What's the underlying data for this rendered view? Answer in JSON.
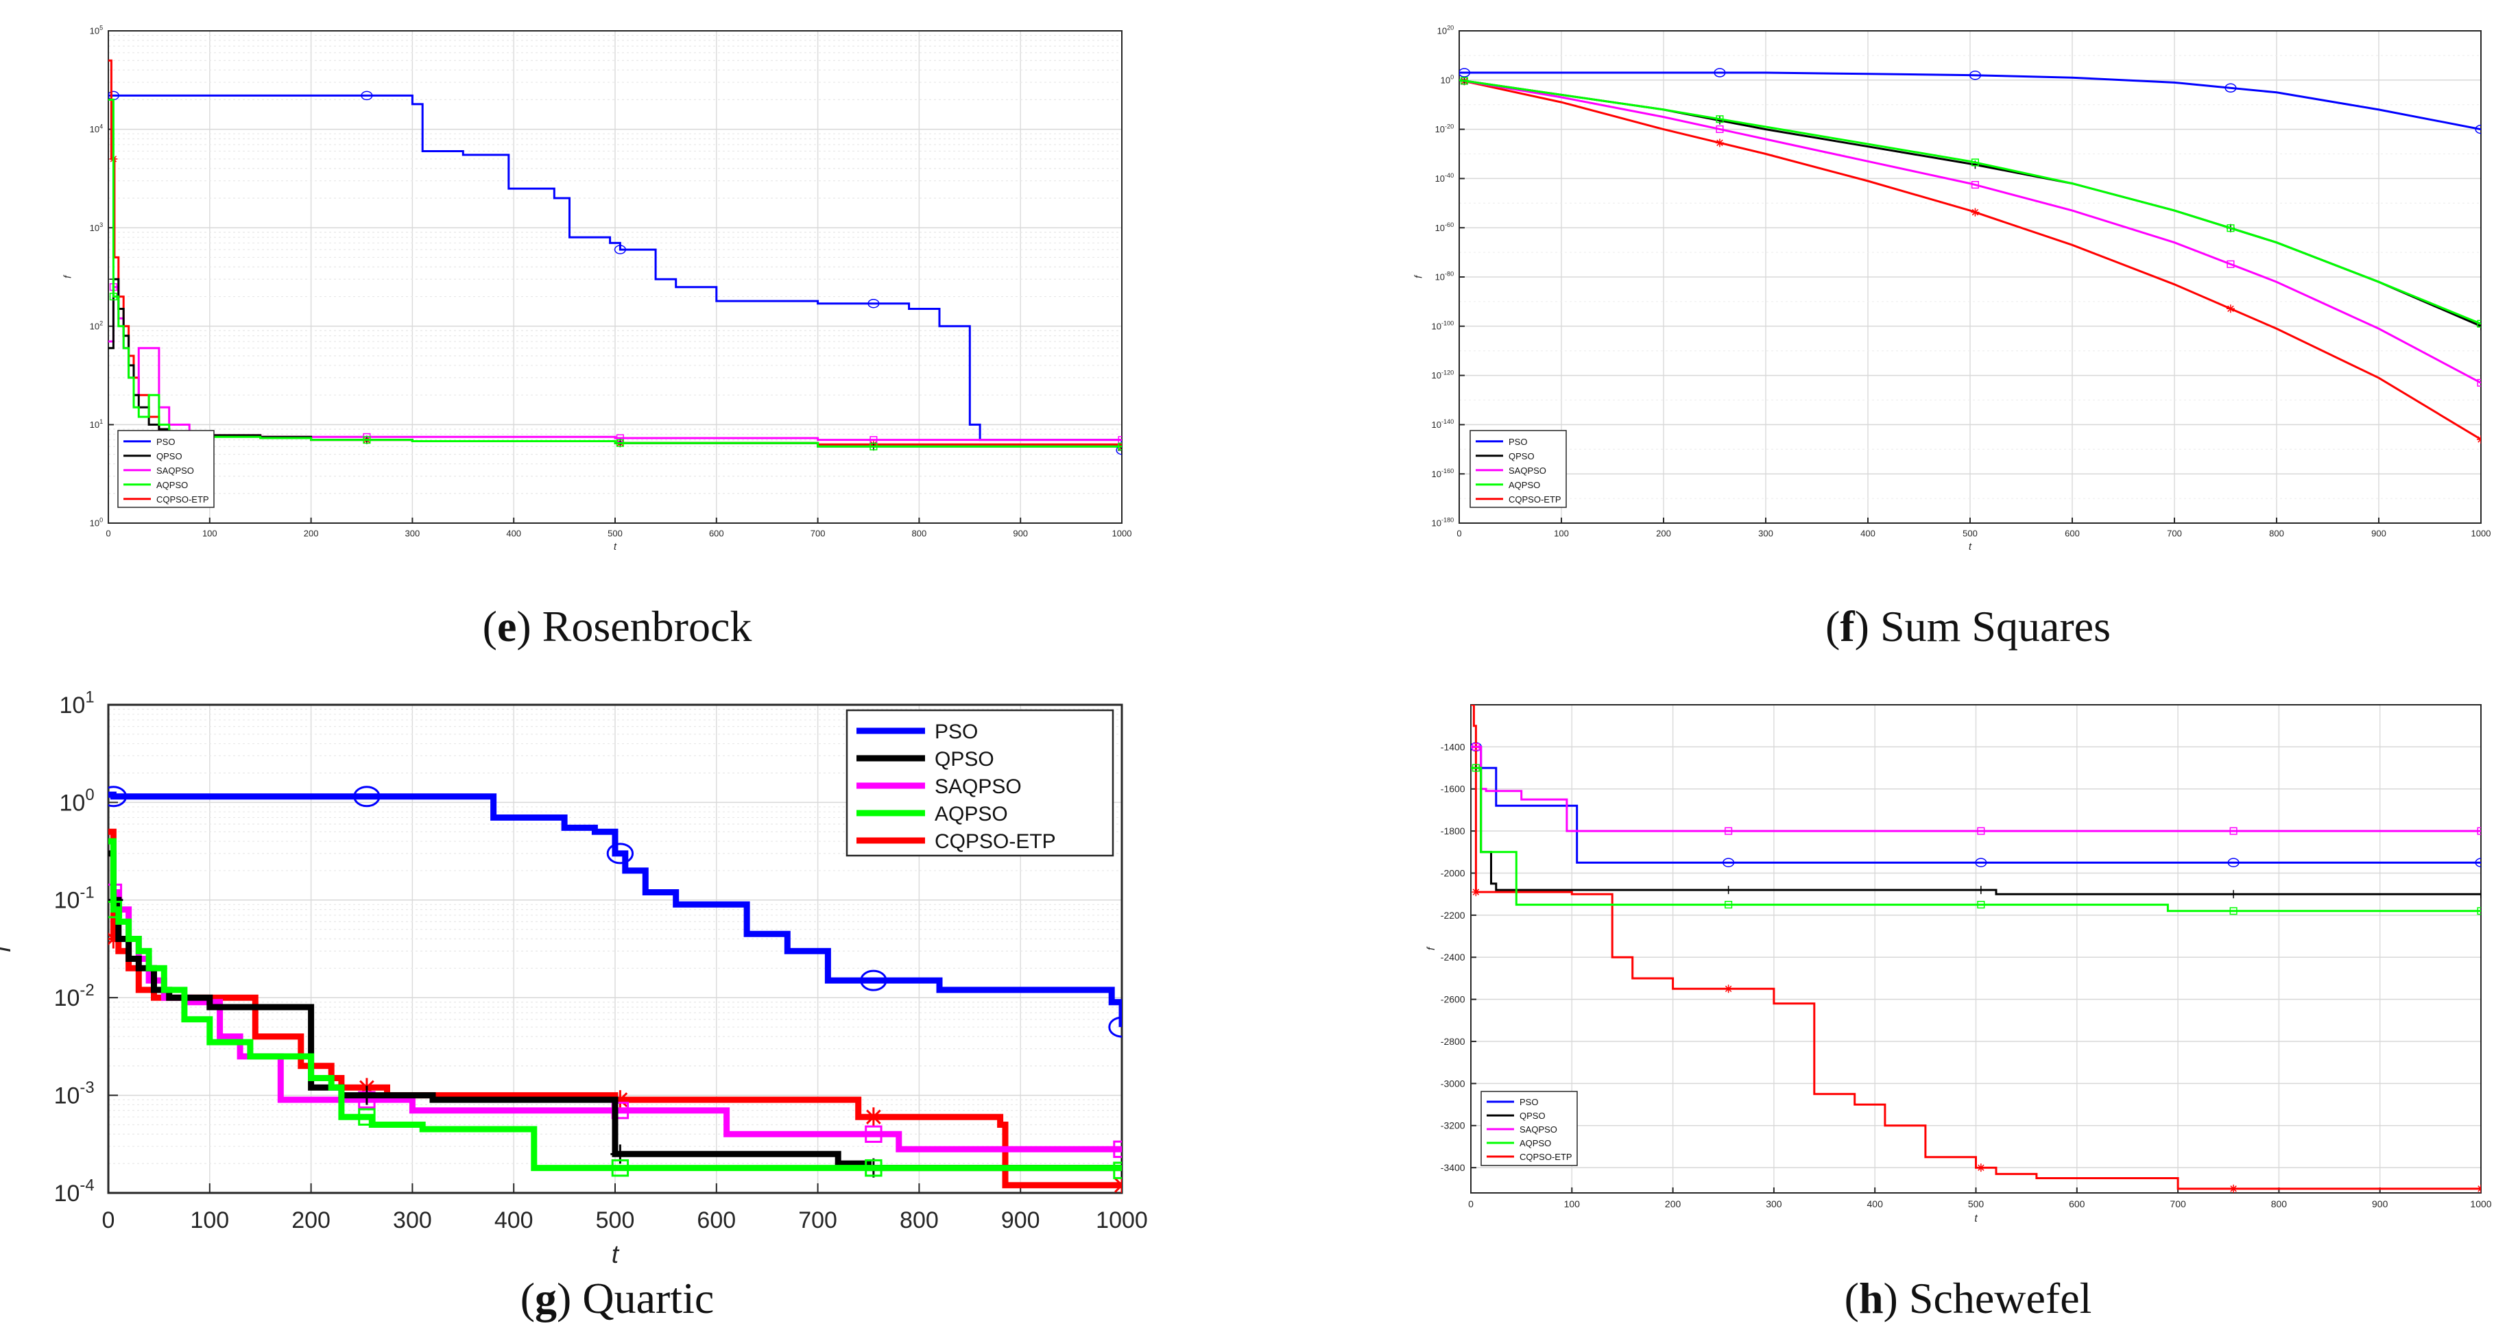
{
  "figure": {
    "panels": [
      {
        "letter": "e",
        "name": "Rosenbrock"
      },
      {
        "letter": "f",
        "name": "Sum Squares"
      },
      {
        "letter": "g",
        "name": "Quartic"
      },
      {
        "letter": "h",
        "name": "Schewefel"
      }
    ]
  },
  "colors": {
    "PSO": "#0000ff",
    "QPSO": "#000000",
    "SAQPSO": "#ff00ff",
    "AQPSO": "#00ff00",
    "CQPSO-ETP": "#ff0000"
  },
  "chart_data": [
    {
      "type": "line",
      "caption_letter": "e",
      "title": "Rosenbrock",
      "xlabel": "t",
      "ylabel": "f",
      "xlim": [
        0,
        1000
      ],
      "yscale": "log",
      "ylim": [
        1,
        100000
      ],
      "xticks": [
        "0",
        "100",
        "200",
        "300",
        "400",
        "500",
        "600",
        "700",
        "800",
        "900",
        "1000"
      ],
      "yticks": [
        {
          "base": "10",
          "exp": "0"
        },
        {
          "base": "10",
          "exp": "1"
        },
        {
          "base": "10",
          "exp": "2"
        },
        {
          "base": "10",
          "exp": "3"
        },
        {
          "base": "10",
          "exp": "4"
        },
        {
          "base": "10",
          "exp": "5"
        }
      ],
      "grid": true,
      "legend_position": "bottom-left",
      "series": [
        {
          "name": "PSO",
          "marker": "circle",
          "x": [
            0,
            5,
            300,
            310,
            350,
            395,
            440,
            455,
            495,
            505,
            540,
            560,
            600,
            700,
            790,
            820,
            850,
            860,
            1000
          ],
          "y": [
            22000,
            22000,
            18000,
            6000,
            5500,
            2500,
            2000,
            800,
            700,
            600,
            300,
            250,
            180,
            170,
            150,
            100,
            10,
            7,
            5.5
          ]
        },
        {
          "name": "QPSO",
          "marker": "plus",
          "x": [
            0,
            5,
            10,
            15,
            20,
            25,
            30,
            40,
            50,
            60,
            80,
            100,
            150,
            200,
            300,
            500,
            700,
            1000
          ],
          "y": [
            60,
            300,
            150,
            80,
            40,
            20,
            15,
            10,
            9,
            8.5,
            8,
            7.8,
            7.5,
            7,
            6.8,
            6.5,
            6,
            5.5
          ]
        },
        {
          "name": "SAQPSO",
          "marker": "square",
          "x": [
            0,
            5,
            10,
            15,
            20,
            25,
            30,
            40,
            50,
            60,
            80,
            100,
            150,
            200,
            300,
            500,
            700,
            1000
          ],
          "y": [
            70,
            250,
            120,
            60,
            30,
            20,
            60,
            60,
            15,
            10,
            8,
            7.8,
            7.5,
            7.5,
            7.5,
            7.3,
            7,
            7
          ]
        },
        {
          "name": "AQPSO",
          "marker": "square",
          "x": [
            0,
            5,
            10,
            15,
            20,
            25,
            30,
            40,
            50,
            60,
            80,
            100,
            150,
            200,
            300,
            500,
            700,
            1000
          ],
          "y": [
            20000,
            200,
            100,
            60,
            30,
            15,
            12,
            20,
            10,
            8,
            7.5,
            7.5,
            7.3,
            7,
            6.8,
            6.5,
            6,
            6
          ]
        },
        {
          "name": "CQPSO-ETP",
          "marker": "star",
          "x": [
            0,
            3,
            6,
            10,
            15,
            20,
            25,
            30,
            40,
            50,
            60,
            80,
            100,
            150,
            200,
            300,
            500,
            700,
            1000
          ],
          "y": [
            50000,
            5000,
            500,
            200,
            100,
            50,
            30,
            20,
            12,
            9,
            8.5,
            8,
            7.8,
            7.5,
            7,
            6.8,
            6.5,
            6.3,
            6
          ]
        }
      ]
    },
    {
      "type": "line",
      "caption_letter": "f",
      "title": "Sum Squares",
      "xlabel": "t",
      "ylabel": "f",
      "xlim": [
        0,
        1000
      ],
      "yscale": "log",
      "ylim_exp": [
        -180,
        20
      ],
      "xticks": [
        "0",
        "100",
        "200",
        "300",
        "400",
        "500",
        "600",
        "700",
        "800",
        "900",
        "1000"
      ],
      "yticks": [
        {
          "base": "10",
          "exp": "-180"
        },
        {
          "base": "10",
          "exp": "-160"
        },
        {
          "base": "10",
          "exp": "-140"
        },
        {
          "base": "10",
          "exp": "-120"
        },
        {
          "base": "10",
          "exp": "-100"
        },
        {
          "base": "10",
          "exp": "-80"
        },
        {
          "base": "10",
          "exp": "-60"
        },
        {
          "base": "10",
          "exp": "-40"
        },
        {
          "base": "10",
          "exp": "-20"
        },
        {
          "base": "10",
          "exp": "0"
        },
        {
          "base": "10",
          "exp": "20"
        }
      ],
      "grid": true,
      "legend_position": "bottom-left",
      "series": [
        {
          "name": "PSO",
          "marker": "circle",
          "x": [
            0,
            100,
            200,
            300,
            400,
            500,
            600,
            700,
            800,
            900,
            1000
          ],
          "y_exp": [
            3,
            3,
            3,
            3,
            2.5,
            2,
            1,
            -1,
            -5,
            -12,
            -20
          ]
        },
        {
          "name": "QPSO",
          "marker": "plus",
          "x": [
            0,
            100,
            200,
            300,
            400,
            500,
            600,
            700,
            800,
            900,
            1000
          ],
          "y_exp": [
            0,
            -6,
            -12,
            -20,
            -27,
            -34,
            -42,
            -53,
            -66,
            -82,
            -100
          ]
        },
        {
          "name": "SAQPSO",
          "marker": "square",
          "x": [
            0,
            100,
            200,
            300,
            400,
            500,
            600,
            700,
            800,
            900,
            1000
          ],
          "y_exp": [
            0,
            -7,
            -15,
            -24,
            -33,
            -42,
            -53,
            -66,
            -82,
            -101,
            -123
          ]
        },
        {
          "name": "AQPSO",
          "marker": "square",
          "x": [
            0,
            100,
            200,
            300,
            400,
            500,
            600,
            700,
            800,
            900,
            1000
          ],
          "y_exp": [
            0,
            -6,
            -12,
            -19,
            -26,
            -33,
            -42,
            -53,
            -66,
            -82,
            -99
          ]
        },
        {
          "name": "CQPSO-ETP",
          "marker": "star",
          "x": [
            0,
            100,
            200,
            300,
            400,
            500,
            600,
            700,
            800,
            900,
            1000
          ],
          "y_exp": [
            0,
            -9,
            -20,
            -30,
            -41,
            -53,
            -67,
            -83,
            -101,
            -121,
            -146
          ]
        }
      ]
    },
    {
      "type": "line",
      "caption_letter": "g",
      "title": "Quartic",
      "xlabel": "t",
      "ylabel": "f",
      "xlim": [
        0,
        1000
      ],
      "yscale": "log",
      "ylim": [
        0.0001,
        10
      ],
      "xticks": [
        "0",
        "100",
        "200",
        "300",
        "400",
        "500",
        "600",
        "700",
        "800",
        "900",
        "1000"
      ],
      "yticks": [
        {
          "base": "10",
          "exp": "-4"
        },
        {
          "base": "10",
          "exp": "-3"
        },
        {
          "base": "10",
          "exp": "-2"
        },
        {
          "base": "10",
          "exp": "-1"
        },
        {
          "base": "10",
          "exp": "0"
        },
        {
          "base": "10",
          "exp": "1"
        }
      ],
      "grid": true,
      "legend_position": "top-right",
      "series": [
        {
          "name": "PSO",
          "marker": "circle",
          "x": [
            0,
            5,
            350,
            380,
            450,
            480,
            500,
            510,
            530,
            560,
            630,
            670,
            710,
            820,
            990,
            1000
          ],
          "y": [
            1.2,
            1.15,
            1.15,
            0.7,
            0.55,
            0.5,
            0.3,
            0.2,
            0.12,
            0.09,
            0.045,
            0.03,
            0.015,
            0.012,
            0.009,
            0.005
          ]
        },
        {
          "name": "QPSO",
          "marker": "plus",
          "x": [
            0,
            5,
            10,
            20,
            30,
            45,
            60,
            100,
            190,
            200,
            230,
            300,
            320,
            480,
            500,
            720,
            750,
            1000
          ],
          "y": [
            0.3,
            0.1,
            0.04,
            0.025,
            0.02,
            0.012,
            0.01,
            0.008,
            0.008,
            0.0012,
            0.001,
            0.001,
            0.0009,
            0.0009,
            0.00025,
            0.0002,
            0.00018,
            0.00018
          ]
        },
        {
          "name": "SAQPSO",
          "marker": "square",
          "x": [
            0,
            5,
            10,
            20,
            30,
            40,
            55,
            80,
            110,
            130,
            170,
            250,
            300,
            500,
            610,
            700,
            750,
            780,
            1000
          ],
          "y": [
            0.3,
            0.12,
            0.08,
            0.04,
            0.025,
            0.015,
            0.01,
            0.009,
            0.004,
            0.0025,
            0.0009,
            0.0009,
            0.0007,
            0.0007,
            0.0004,
            0.0004,
            0.0004,
            0.00028,
            0.00028
          ]
        },
        {
          "name": "AQPSO",
          "marker": "square",
          "x": [
            0,
            5,
            10,
            20,
            30,
            40,
            55,
            75,
            100,
            140,
            180,
            200,
            220,
            230,
            260,
            310,
            420,
            1000
          ],
          "y": [
            0.4,
            0.08,
            0.06,
            0.04,
            0.03,
            0.02,
            0.012,
            0.006,
            0.0035,
            0.0025,
            0.0025,
            0.0015,
            0.0012,
            0.0006,
            0.0005,
            0.00045,
            0.00018,
            0.00017
          ]
        },
        {
          "name": "CQPSO-ETP",
          "marker": "star",
          "x": [
            0,
            5,
            10,
            20,
            30,
            45,
            60,
            90,
            145,
            190,
            220,
            230,
            255,
            275,
            500,
            740,
            880,
            885,
            1000
          ],
          "y": [
            0.5,
            0.04,
            0.03,
            0.02,
            0.012,
            0.01,
            0.01,
            0.01,
            0.004,
            0.002,
            0.0015,
            0.0012,
            0.0012,
            0.001,
            0.0009,
            0.0006,
            0.0005,
            0.00012,
            0.00012
          ]
        }
      ]
    },
    {
      "type": "line",
      "caption_letter": "h",
      "title": "Schewefel",
      "xlabel": "t",
      "ylabel": "f",
      "xlim": [
        0,
        1000
      ],
      "yscale": "linear",
      "ylim": [
        -3520,
        -1200
      ],
      "xticks": [
        "0",
        "100",
        "200",
        "300",
        "400",
        "500",
        "600",
        "700",
        "800",
        "900",
        "1000"
      ],
      "yticks": [
        "-1400",
        "-1600",
        "-1800",
        "-2000",
        "-2200",
        "-2400",
        "-2600",
        "-2800",
        "-3000",
        "-3200",
        "-3400"
      ],
      "grid": true,
      "legend_position": "bottom-left",
      "series": [
        {
          "name": "PSO",
          "marker": "circle",
          "x": [
            0,
            8,
            10,
            25,
            100,
            105,
            1000
          ],
          "y": [
            -1400,
            -1400,
            -1500,
            -1680,
            -1680,
            -1950,
            -1950
          ]
        },
        {
          "name": "QPSO",
          "marker": "plus",
          "x": [
            0,
            5,
            10,
            20,
            25,
            30,
            500,
            520,
            1000
          ],
          "y": [
            -1500,
            -1500,
            -1900,
            -2050,
            -2080,
            -2080,
            -2080,
            -2100,
            -2100
          ]
        },
        {
          "name": "SAQPSO",
          "marker": "square",
          "x": [
            0,
            5,
            10,
            15,
            50,
            90,
            95,
            1000
          ],
          "y": [
            -1400,
            -1400,
            -1600,
            -1610,
            -1650,
            -1650,
            -1800,
            -1800
          ]
        },
        {
          "name": "AQPSO",
          "marker": "square",
          "x": [
            0,
            5,
            10,
            40,
            45,
            500,
            690,
            1000
          ],
          "y": [
            -1500,
            -1500,
            -1900,
            -1900,
            -2150,
            -2150,
            -2180,
            -2180
          ]
        },
        {
          "name": "CQPSO-ETP",
          "marker": "star",
          "x": [
            0,
            3,
            5,
            100,
            140,
            160,
            200,
            260,
            300,
            330,
            340,
            380,
            410,
            450,
            500,
            520,
            560,
            690,
            700,
            1000
          ],
          "y": [
            -1200,
            -1300,
            -2090,
            -2100,
            -2400,
            -2500,
            -2550,
            -2550,
            -2620,
            -2620,
            -3050,
            -3100,
            -3200,
            -3350,
            -3400,
            -3430,
            -3450,
            -3450,
            -3500,
            -3500
          ]
        }
      ]
    }
  ]
}
